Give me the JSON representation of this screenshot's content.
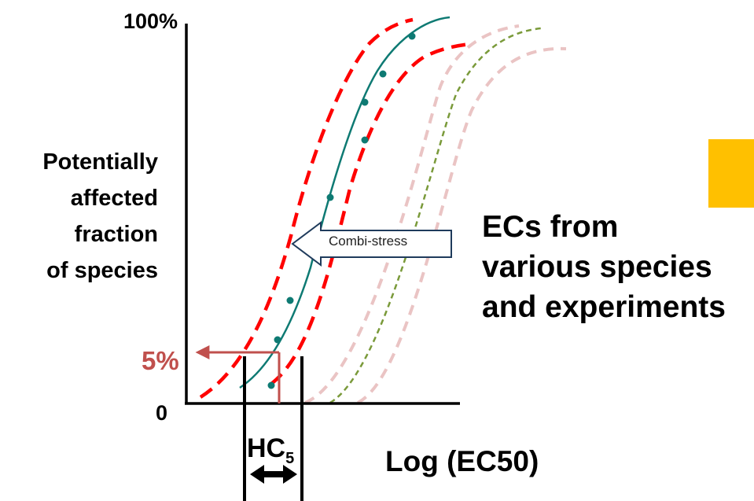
{
  "diagram": {
    "y_axis": {
      "top_tick": "100%",
      "bottom_tick": "0",
      "label_lines": [
        "Potentially",
        "affected",
        "fraction",
        "of species"
      ]
    },
    "x_axis": {
      "label": "Log (EC50)"
    },
    "threshold": {
      "label": "5%",
      "hazard_label": "HC",
      "hazard_subscript": "5"
    },
    "shift_arrow": {
      "label": "Combi-stress"
    },
    "ec_label_lines": [
      "ECs from",
      "various species",
      "and experiments"
    ],
    "colors": {
      "main_curve": "#0E7A73",
      "confidence_band": "#FF0000",
      "faded_curves": "#EAC4C4",
      "shifted_curve": "#7A9A3A",
      "threshold": "#C0504D",
      "accent_block": "#FFC000",
      "axis": "#000000"
    }
  }
}
